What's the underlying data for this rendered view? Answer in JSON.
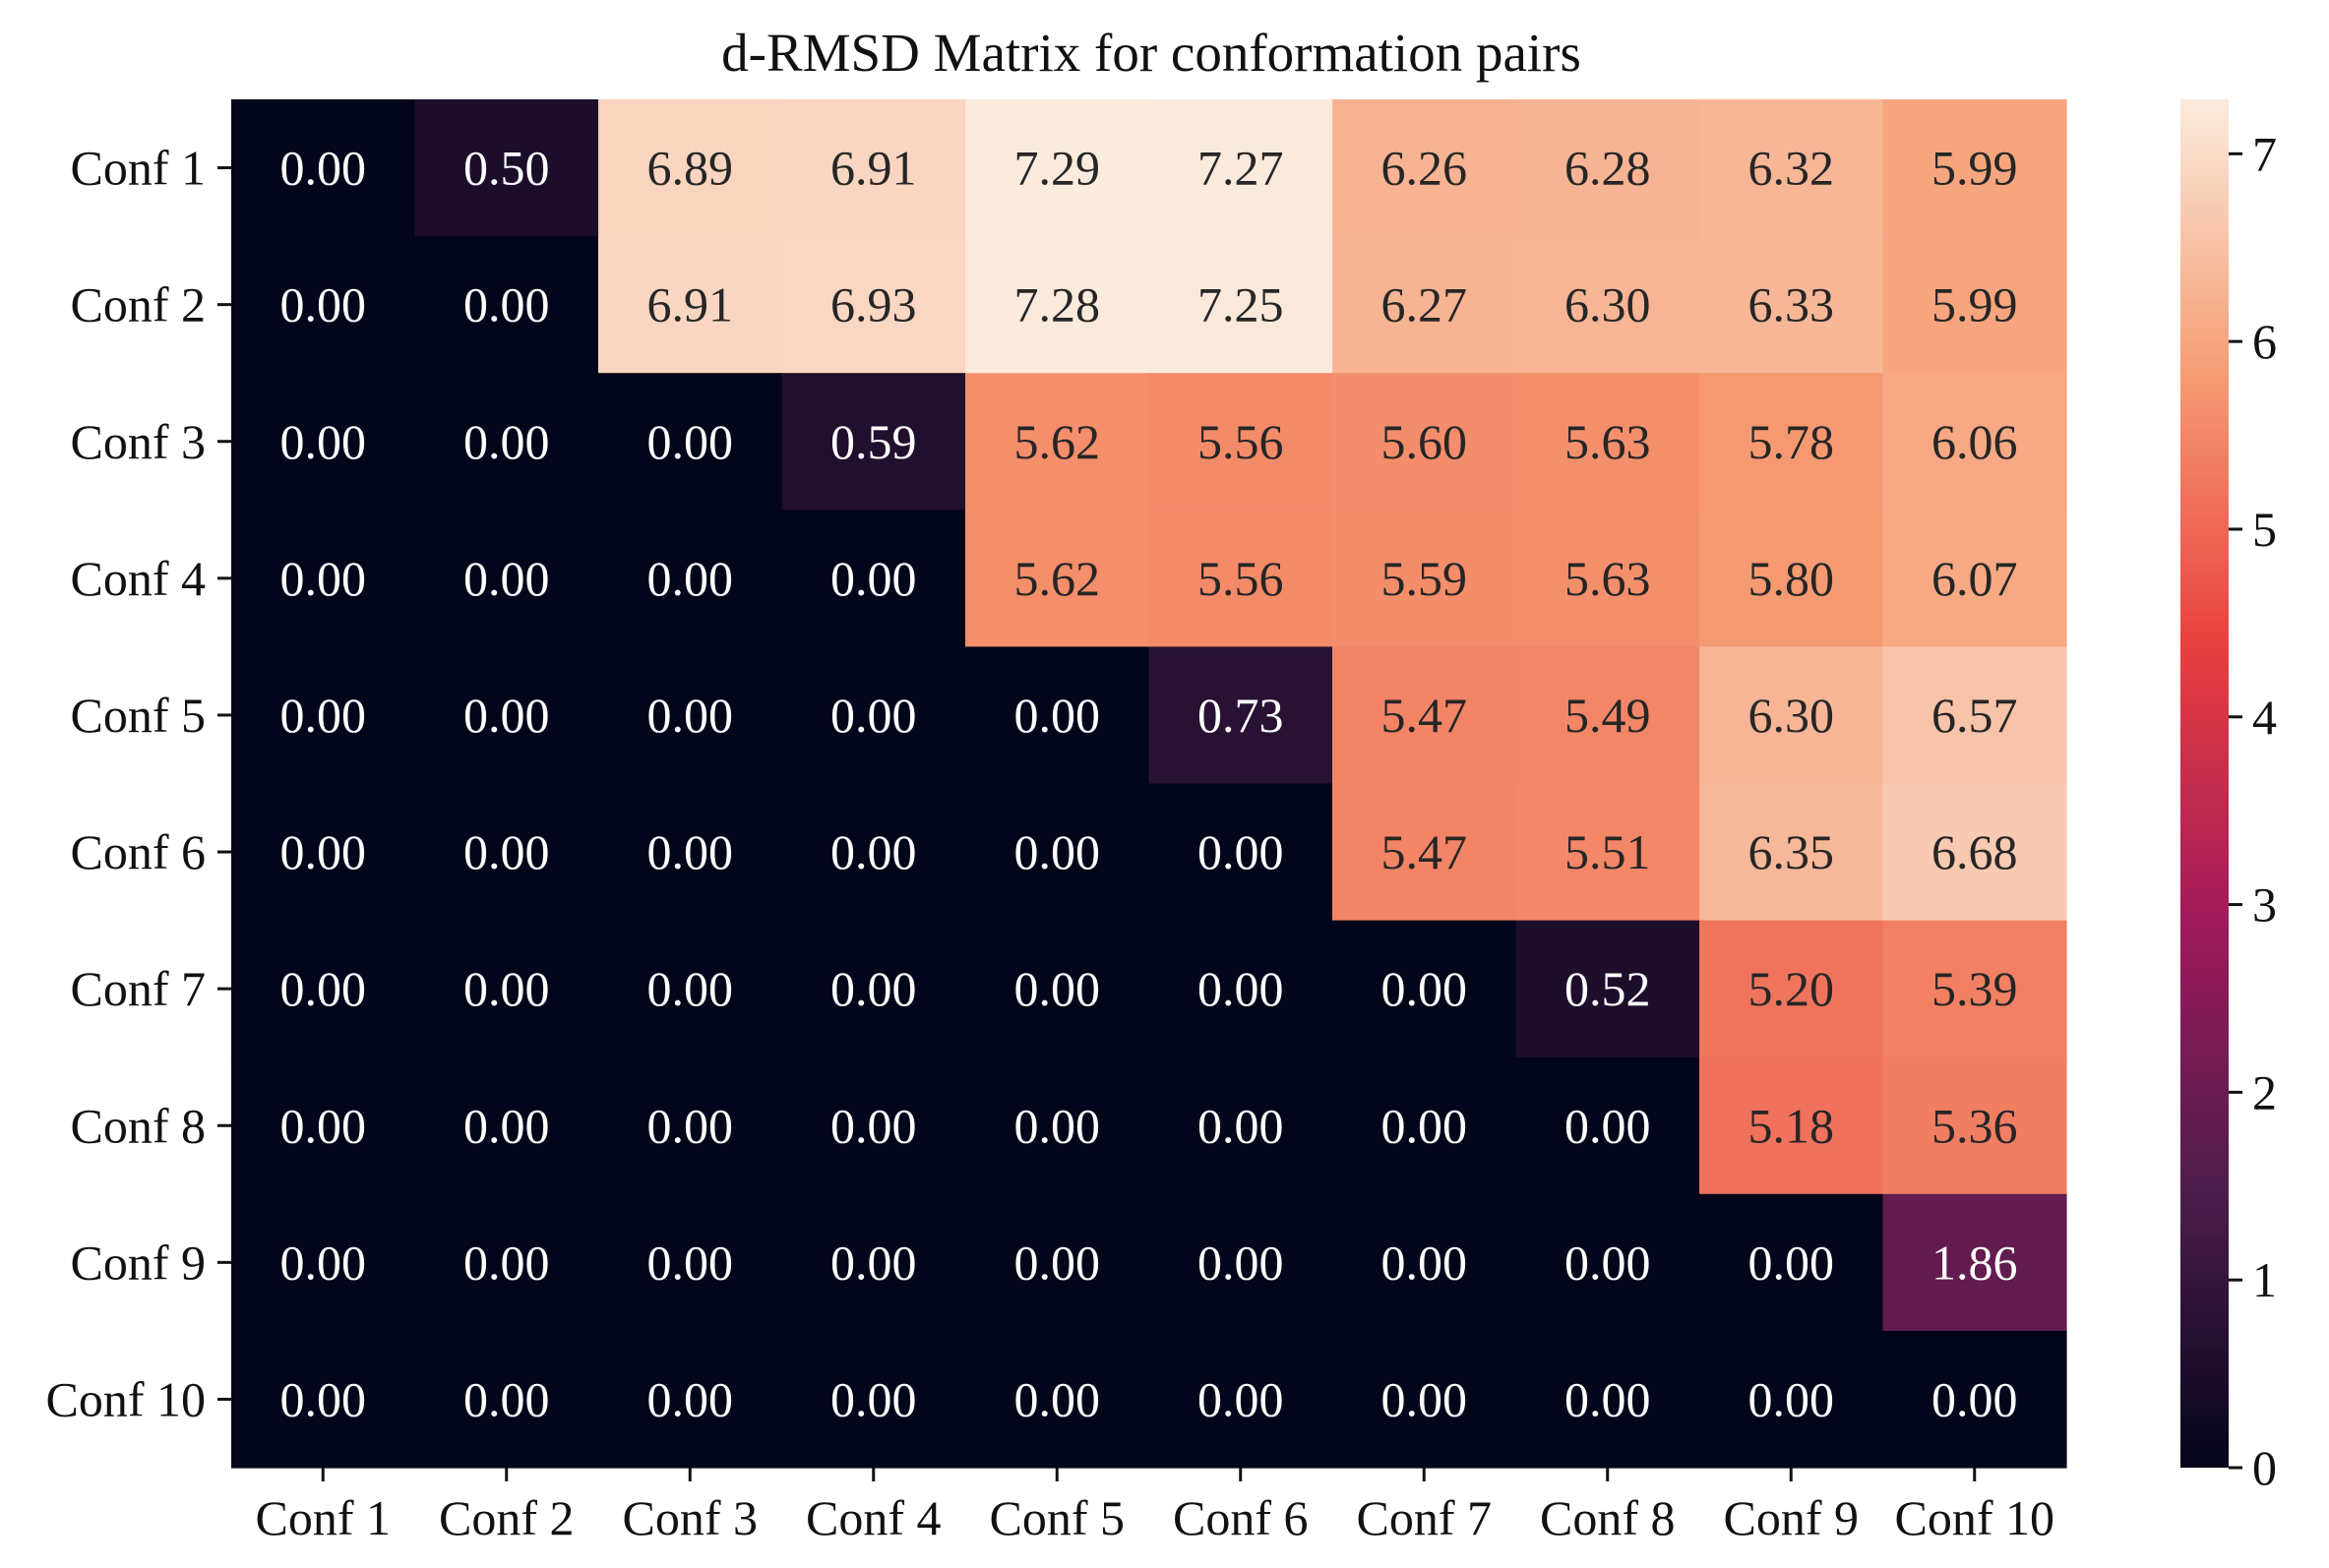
{
  "chart_data": {
    "type": "heatmap",
    "title": "d-RMSD Matrix for conformation pairs",
    "row_labels": [
      "Conf 1",
      "Conf 2",
      "Conf 3",
      "Conf 4",
      "Conf 5",
      "Conf 6",
      "Conf 7",
      "Conf 8",
      "Conf 9",
      "Conf 10"
    ],
    "col_labels": [
      "Conf 1",
      "Conf 2",
      "Conf 3",
      "Conf 4",
      "Conf 5",
      "Conf 6",
      "Conf 7",
      "Conf 8",
      "Conf 9",
      "Conf 10"
    ],
    "values": [
      [
        0.0,
        0.5,
        6.89,
        6.91,
        7.29,
        7.27,
        6.26,
        6.28,
        6.32,
        5.99
      ],
      [
        0.0,
        0.0,
        6.91,
        6.93,
        7.28,
        7.25,
        6.27,
        6.3,
        6.33,
        5.99
      ],
      [
        0.0,
        0.0,
        0.0,
        0.59,
        5.62,
        5.56,
        5.6,
        5.63,
        5.78,
        6.06
      ],
      [
        0.0,
        0.0,
        0.0,
        0.0,
        5.62,
        5.56,
        5.59,
        5.63,
        5.8,
        6.07
      ],
      [
        0.0,
        0.0,
        0.0,
        0.0,
        0.0,
        0.73,
        5.47,
        5.49,
        6.3,
        6.57
      ],
      [
        0.0,
        0.0,
        0.0,
        0.0,
        0.0,
        0.0,
        5.47,
        5.51,
        6.35,
        6.68
      ],
      [
        0.0,
        0.0,
        0.0,
        0.0,
        0.0,
        0.0,
        0.0,
        0.52,
        5.2,
        5.39
      ],
      [
        0.0,
        0.0,
        0.0,
        0.0,
        0.0,
        0.0,
        0.0,
        0.0,
        5.18,
        5.36
      ],
      [
        0.0,
        0.0,
        0.0,
        0.0,
        0.0,
        0.0,
        0.0,
        0.0,
        0.0,
        1.86
      ],
      [
        0.0,
        0.0,
        0.0,
        0.0,
        0.0,
        0.0,
        0.0,
        0.0,
        0.0,
        0.0
      ]
    ],
    "value_format_decimals": 2,
    "colormap": "rocket",
    "colormap_stops": [
      "#03051a",
      "#4c1d4b",
      "#a11a5b",
      "#e83f3f",
      "#f69c73",
      "#faebdd"
    ],
    "vmin": 0,
    "vmax": 7.29,
    "colorbar_ticks": [
      0,
      1,
      2,
      3,
      4,
      5,
      6,
      7
    ],
    "grid": false,
    "legend": "colorbar-right"
  }
}
